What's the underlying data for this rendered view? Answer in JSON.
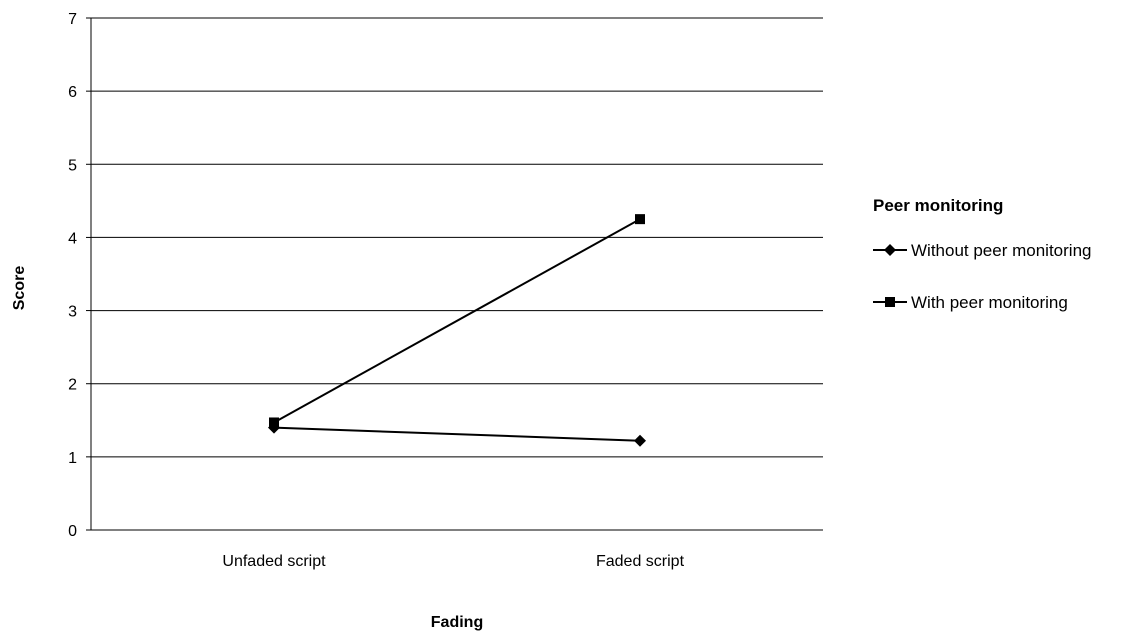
{
  "chart_data": {
    "type": "line",
    "categories": [
      "Unfaded script",
      "Faded script"
    ],
    "series": [
      {
        "name": "Without peer monitoring",
        "marker": "diamond",
        "values": [
          1.4,
          1.22
        ]
      },
      {
        "name": "With peer monitoring",
        "marker": "square",
        "values": [
          1.47,
          4.25
        ]
      }
    ],
    "ylim": [
      0,
      7
    ],
    "yticks": [
      0,
      1,
      2,
      3,
      4,
      5,
      6,
      7
    ],
    "xlabel": "Fading",
    "ylabel": "Score",
    "legend": {
      "title": "Peer monitoring",
      "position": "right"
    },
    "grid": true,
    "colors": {
      "line": "#000000",
      "grid": "#000000"
    }
  }
}
